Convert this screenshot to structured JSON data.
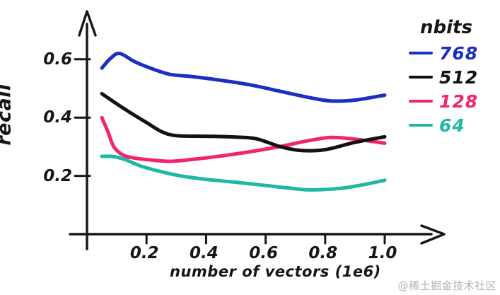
{
  "chart_data": {
    "type": "line",
    "style": "hand-drawn-xkcd",
    "title": "",
    "xlabel": "number of vectors (1e6)",
    "ylabel": "recall",
    "xlim": [
      0,
      1.15
    ],
    "ylim": [
      0,
      0.76
    ],
    "x_ticks": [
      0.2,
      0.4,
      0.6,
      0.8,
      1.0
    ],
    "y_ticks": [
      0.2,
      0.4,
      0.6
    ],
    "grid": false,
    "legend_title": "nbits",
    "legend_position": "top-right",
    "axis_color": "#161616",
    "series": [
      {
        "name": "768",
        "color": "#1b2fc4",
        "x": [
          0.05,
          0.08,
          0.11,
          0.16,
          0.22,
          0.28,
          0.35,
          0.45,
          0.55,
          0.65,
          0.75,
          0.82,
          0.9,
          1.0
        ],
        "y": [
          0.57,
          0.604,
          0.62,
          0.592,
          0.567,
          0.548,
          0.541,
          0.528,
          0.512,
          0.49,
          0.468,
          0.457,
          0.46,
          0.477
        ]
      },
      {
        "name": "512",
        "color": "#121212",
        "x": [
          0.05,
          0.1,
          0.15,
          0.2,
          0.25,
          0.3,
          0.4,
          0.5,
          0.57,
          0.65,
          0.72,
          0.8,
          0.9,
          1.0
        ],
        "y": [
          0.482,
          0.447,
          0.414,
          0.383,
          0.352,
          0.338,
          0.336,
          0.333,
          0.327,
          0.3,
          0.287,
          0.29,
          0.315,
          0.334
        ]
      },
      {
        "name": "128",
        "color": "#f2246e",
        "x": [
          0.05,
          0.07,
          0.09,
          0.12,
          0.16,
          0.22,
          0.28,
          0.35,
          0.45,
          0.55,
          0.65,
          0.75,
          0.82,
          0.9,
          1.0
        ],
        "y": [
          0.4,
          0.352,
          0.3,
          0.272,
          0.261,
          0.254,
          0.25,
          0.256,
          0.268,
          0.283,
          0.301,
          0.322,
          0.332,
          0.326,
          0.312
        ]
      },
      {
        "name": "64",
        "color": "#1eb8a4",
        "x": [
          0.05,
          0.09,
          0.13,
          0.18,
          0.25,
          0.32,
          0.4,
          0.5,
          0.6,
          0.68,
          0.75,
          0.85,
          0.93,
          1.0
        ],
        "y": [
          0.267,
          0.266,
          0.255,
          0.234,
          0.214,
          0.199,
          0.188,
          0.178,
          0.167,
          0.158,
          0.152,
          0.157,
          0.17,
          0.185
        ]
      }
    ]
  },
  "watermark": "@稀土掘金技术社区",
  "colors": {
    "background": "#ffffff",
    "axis": "#161616",
    "watermark": "#b5afa8"
  }
}
